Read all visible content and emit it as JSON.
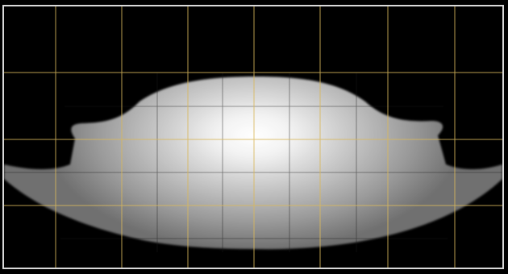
{
  "viewer": {
    "colors": {
      "background": "#000000",
      "frame_border": "#d9d9d9",
      "primary_grid": "#d9b85c",
      "secondary_grid": "#1a1a1a",
      "object_core": "#ffffff",
      "object_edge": "#8a8a8a"
    },
    "grid": {
      "primary_columns": 7,
      "primary_rows": 3
    }
  }
}
